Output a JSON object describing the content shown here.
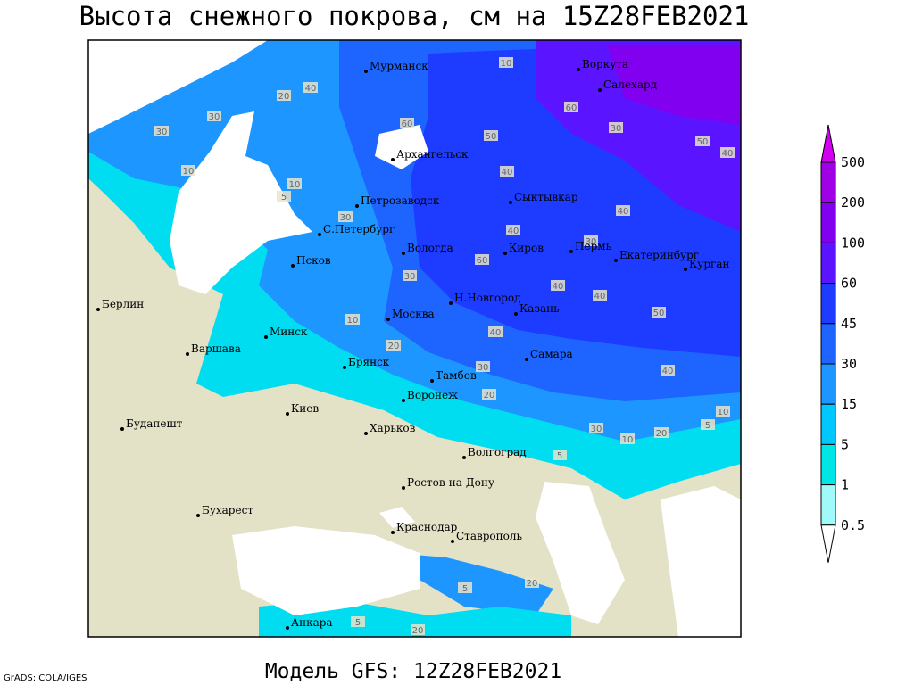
{
  "title": "Высота снежного покрова, см на 15Z28FEB2021",
  "footer": "Модель GFS: 12Z28FEB2021",
  "credit": "GrADS: COLA/IGES",
  "cities": [
    "Мурманск",
    "Воркута",
    "Салехард",
    "Архангельск",
    "Сыктывкар",
    "Петрозаводск",
    "С.Петербург",
    "Вологда",
    "Киров",
    "Пермь",
    "Екатеринбург",
    "Курган",
    "Псков",
    "Н.Новгород",
    "Казань",
    "Москва",
    "Минск",
    "Берлин",
    "Варшава",
    "Брянск",
    "Тамбов",
    "Самара",
    "Киев",
    "Воронеж",
    "Харьков",
    "Будапешт",
    "Волгоград",
    "Ростов-на-Дону",
    "Бухарест",
    "Краснодар",
    "Ставрополь",
    "Анкара"
  ],
  "contour_labels": [
    10,
    20,
    40,
    60,
    50,
    40,
    60,
    30,
    50,
    40,
    10,
    10,
    5,
    30,
    40,
    30,
    40,
    60,
    30,
    40,
    40,
    50,
    10,
    20,
    40,
    30,
    20,
    40,
    10,
    5,
    30,
    10,
    20,
    5,
    20,
    5,
    5,
    20,
    30,
    30
  ],
  "legend": {
    "levels": [
      500,
      200,
      100,
      60,
      45,
      30,
      15,
      5,
      1,
      0.5
    ],
    "colors": [
      "#d200f0",
      "#a000e6",
      "#8200f0",
      "#5a14ff",
      "#1e3cff",
      "#1e64ff",
      "#1e96ff",
      "#00c8ff",
      "#00e6e6",
      "#a0fafa",
      "#ffffff"
    ]
  }
}
